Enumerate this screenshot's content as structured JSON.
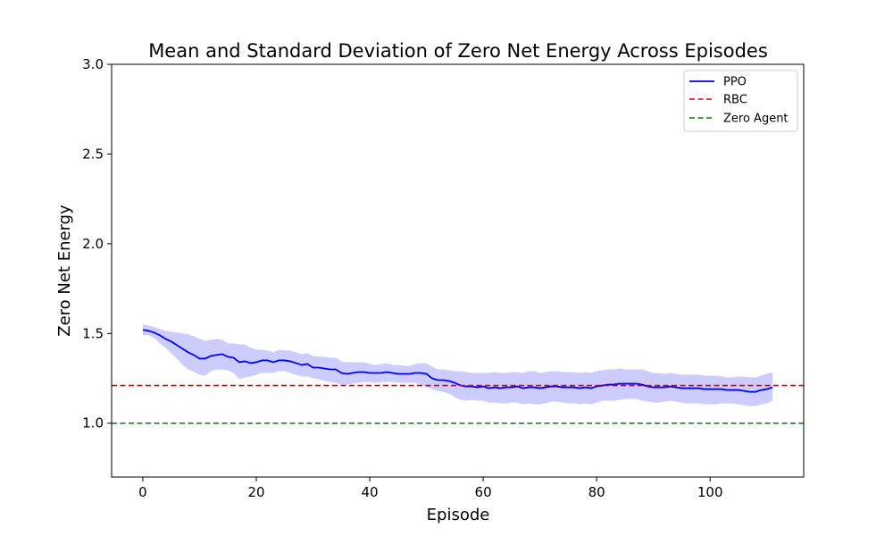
{
  "chart_data": {
    "type": "line",
    "title": "Mean and Standard Deviation of Zero Net Energy Across Episodes",
    "xlabel": "Episode",
    "ylabel": "Zero Net Energy",
    "xlim": [
      -5.5,
      116.5
    ],
    "ylim": [
      0.7,
      3.0
    ],
    "xticks": [
      0,
      20,
      40,
      60,
      80,
      100
    ],
    "xtick_labels": [
      "0",
      "20",
      "40",
      "60",
      "80",
      "100"
    ],
    "yticks": [
      1.0,
      1.5,
      2.0,
      2.5,
      3.0
    ],
    "ytick_labels": [
      "1.0",
      "1.5",
      "2.0",
      "2.5",
      "3.0"
    ],
    "grid": false,
    "legend_position": "top-right",
    "series": [
      {
        "name": "PPO",
        "style": "solid",
        "color": "#0000ff",
        "fill_color": "#0000ff",
        "fill_opacity": 0.2,
        "x": [
          0,
          1,
          2,
          3,
          4,
          5,
          6,
          7,
          8,
          9,
          10,
          11,
          12,
          13,
          14,
          15,
          16,
          17,
          18,
          19,
          20,
          21,
          22,
          23,
          24,
          25,
          26,
          27,
          28,
          29,
          30,
          31,
          32,
          33,
          34,
          35,
          36,
          37,
          38,
          39,
          40,
          41,
          42,
          43,
          44,
          45,
          46,
          47,
          48,
          49,
          50,
          51,
          52,
          53,
          54,
          55,
          56,
          57,
          58,
          59,
          60,
          61,
          62,
          63,
          64,
          65,
          66,
          67,
          68,
          69,
          70,
          71,
          72,
          73,
          74,
          75,
          76,
          77,
          78,
          79,
          80,
          81,
          82,
          83,
          84,
          85,
          86,
          87,
          88,
          89,
          90,
          91,
          92,
          93,
          94,
          95,
          96,
          97,
          98,
          99,
          100,
          101,
          102,
          103,
          104,
          105,
          106,
          107,
          108,
          109,
          110,
          111
        ],
        "mean": [
          1.52,
          1.515,
          1.505,
          1.49,
          1.47,
          1.455,
          1.435,
          1.415,
          1.395,
          1.38,
          1.36,
          1.36,
          1.375,
          1.38,
          1.385,
          1.37,
          1.365,
          1.34,
          1.345,
          1.335,
          1.34,
          1.35,
          1.35,
          1.34,
          1.35,
          1.35,
          1.345,
          1.335,
          1.325,
          1.33,
          1.31,
          1.31,
          1.305,
          1.3,
          1.3,
          1.28,
          1.275,
          1.28,
          1.285,
          1.285,
          1.28,
          1.28,
          1.28,
          1.285,
          1.28,
          1.275,
          1.275,
          1.275,
          1.28,
          1.28,
          1.275,
          1.25,
          1.24,
          1.24,
          1.235,
          1.225,
          1.21,
          1.205,
          1.205,
          1.2,
          1.205,
          1.195,
          1.2,
          1.195,
          1.2,
          1.2,
          1.205,
          1.195,
          1.2,
          1.2,
          1.195,
          1.2,
          1.205,
          1.205,
          1.2,
          1.2,
          1.2,
          1.195,
          1.2,
          1.195,
          1.205,
          1.21,
          1.215,
          1.215,
          1.22,
          1.22,
          1.22,
          1.22,
          1.215,
          1.205,
          1.2,
          1.2,
          1.2,
          1.205,
          1.2,
          1.195,
          1.195,
          1.195,
          1.195,
          1.19,
          1.19,
          1.19,
          1.19,
          1.185,
          1.185,
          1.185,
          1.18,
          1.175,
          1.175,
          1.185,
          1.19,
          1.2
        ],
        "lower": [
          1.49,
          1.49,
          1.475,
          1.445,
          1.42,
          1.39,
          1.36,
          1.325,
          1.3,
          1.285,
          1.27,
          1.265,
          1.29,
          1.3,
          1.3,
          1.295,
          1.28,
          1.245,
          1.255,
          1.26,
          1.27,
          1.28,
          1.28,
          1.28,
          1.29,
          1.29,
          1.28,
          1.27,
          1.26,
          1.26,
          1.25,
          1.245,
          1.235,
          1.23,
          1.225,
          1.215,
          1.215,
          1.22,
          1.225,
          1.23,
          1.23,
          1.225,
          1.23,
          1.23,
          1.23,
          1.225,
          1.225,
          1.225,
          1.225,
          1.215,
          1.2,
          1.19,
          1.18,
          1.175,
          1.165,
          1.145,
          1.13,
          1.125,
          1.13,
          1.125,
          1.125,
          1.115,
          1.115,
          1.11,
          1.11,
          1.115,
          1.115,
          1.105,
          1.11,
          1.105,
          1.105,
          1.11,
          1.12,
          1.12,
          1.115,
          1.11,
          1.11,
          1.105,
          1.11,
          1.105,
          1.115,
          1.125,
          1.125,
          1.125,
          1.13,
          1.135,
          1.135,
          1.135,
          1.125,
          1.12,
          1.115,
          1.115,
          1.12,
          1.125,
          1.12,
          1.115,
          1.11,
          1.11,
          1.11,
          1.105,
          1.105,
          1.105,
          1.11,
          1.11,
          1.11,
          1.105,
          1.1,
          1.095,
          1.095,
          1.105,
          1.11,
          1.125
        ],
        "upper": [
          1.55,
          1.545,
          1.535,
          1.525,
          1.515,
          1.51,
          1.505,
          1.5,
          1.495,
          1.485,
          1.47,
          1.46,
          1.465,
          1.47,
          1.465,
          1.445,
          1.445,
          1.44,
          1.44,
          1.42,
          1.41,
          1.41,
          1.405,
          1.395,
          1.41,
          1.405,
          1.405,
          1.395,
          1.385,
          1.39,
          1.375,
          1.37,
          1.37,
          1.365,
          1.365,
          1.345,
          1.34,
          1.34,
          1.34,
          1.34,
          1.33,
          1.325,
          1.33,
          1.335,
          1.325,
          1.325,
          1.32,
          1.32,
          1.33,
          1.335,
          1.335,
          1.315,
          1.3,
          1.3,
          1.295,
          1.29,
          1.29,
          1.285,
          1.28,
          1.28,
          1.28,
          1.28,
          1.285,
          1.28,
          1.28,
          1.285,
          1.285,
          1.28,
          1.29,
          1.29,
          1.28,
          1.285,
          1.29,
          1.29,
          1.285,
          1.285,
          1.285,
          1.28,
          1.285,
          1.28,
          1.29,
          1.295,
          1.3,
          1.3,
          1.305,
          1.3,
          1.3,
          1.3,
          1.3,
          1.29,
          1.28,
          1.28,
          1.275,
          1.28,
          1.275,
          1.27,
          1.27,
          1.27,
          1.27,
          1.265,
          1.265,
          1.265,
          1.26,
          1.255,
          1.255,
          1.26,
          1.26,
          1.255,
          1.255,
          1.265,
          1.275,
          1.285
        ]
      },
      {
        "name": "RBC",
        "style": "dashed",
        "color": "#dd0000",
        "hline": 1.21
      },
      {
        "name": "Zero Agent",
        "style": "dashed",
        "color": "#008000",
        "hline": 1.0
      }
    ]
  }
}
